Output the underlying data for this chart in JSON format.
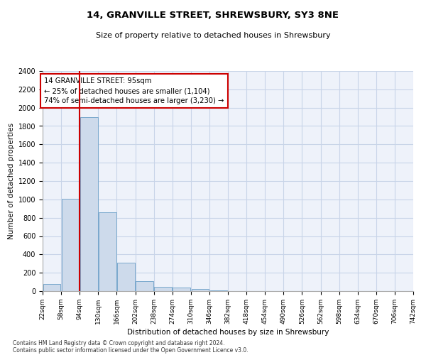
{
  "title": "14, GRANVILLE STREET, SHREWSBURY, SY3 8NE",
  "subtitle": "Size of property relative to detached houses in Shrewsbury",
  "xlabel": "Distribution of detached houses by size in Shrewsbury",
  "ylabel": "Number of detached properties",
  "footnote1": "Contains HM Land Registry data © Crown copyright and database right 2024.",
  "footnote2": "Contains public sector information licensed under the Open Government Licence v3.0.",
  "annotation_line1": "14 GRANVILLE STREET: 95sqm",
  "annotation_line2": "← 25% of detached houses are smaller (1,104)",
  "annotation_line3": "74% of semi-detached houses are larger (3,230) →",
  "property_sqm": 95,
  "bar_color": "#cddaeb",
  "bar_edge_color": "#6b9fc8",
  "vline_color": "#cc0000",
  "annotation_box_color": "#cc0000",
  "grid_color": "#c8d4e8",
  "background_color": "#eef2fa",
  "bins": [
    22,
    58,
    94,
    130,
    166,
    202,
    238,
    274,
    310,
    346,
    382,
    418,
    454,
    490,
    526,
    562,
    598,
    634,
    670,
    706,
    742
  ],
  "counts": [
    80,
    1010,
    1900,
    860,
    310,
    110,
    50,
    40,
    20,
    10,
    0,
    0,
    0,
    0,
    0,
    0,
    0,
    0,
    0,
    0
  ],
  "ylim": [
    0,
    2400
  ],
  "yticks": [
    0,
    200,
    400,
    600,
    800,
    1000,
    1200,
    1400,
    1600,
    1800,
    2000,
    2200,
    2400
  ]
}
